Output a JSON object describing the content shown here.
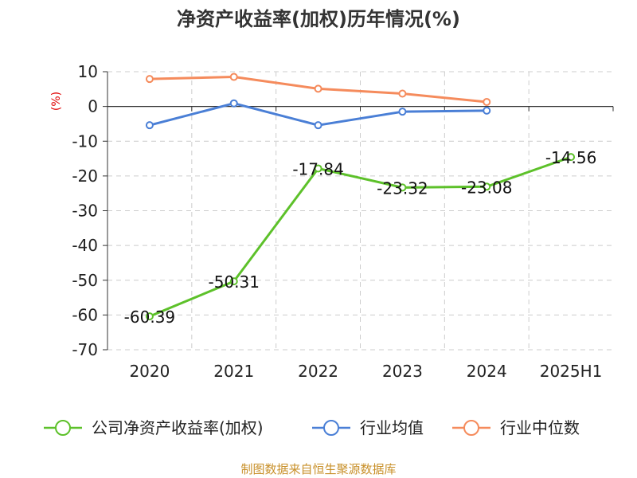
{
  "chart_data": {
    "type": "line",
    "title": "净资产收益率(加权)历年情况(%)",
    "y_unit": "(%)",
    "categories": [
      "2020",
      "2021",
      "2022",
      "2023",
      "2024",
      "2025H1"
    ],
    "ylim": [
      -70,
      10
    ],
    "yticks": [
      10,
      0,
      -10,
      -20,
      -30,
      -40,
      -50,
      -60,
      -70
    ],
    "grid": true,
    "legend_position": "bottom",
    "series": [
      {
        "name": "公司净资产收益率(加权)",
        "color": "#5dc12a",
        "values": [
          -60.39,
          -50.31,
          -17.84,
          -23.32,
          -23.08,
          -14.56
        ],
        "labels": [
          "-60.39",
          "-50.31",
          "-17.84",
          "-23.32",
          "-23.08",
          "-14.56"
        ]
      },
      {
        "name": "行业均值",
        "color": "#4a7fd6",
        "values": [
          -5.4,
          0.9,
          -5.4,
          -1.5,
          -1.2,
          null
        ]
      },
      {
        "name": "行业中位数",
        "color": "#f58b5c",
        "values": [
          7.9,
          8.5,
          5.1,
          3.7,
          1.3,
          null
        ]
      }
    ]
  },
  "source_note": "制图数据来自恒生聚源数据库"
}
